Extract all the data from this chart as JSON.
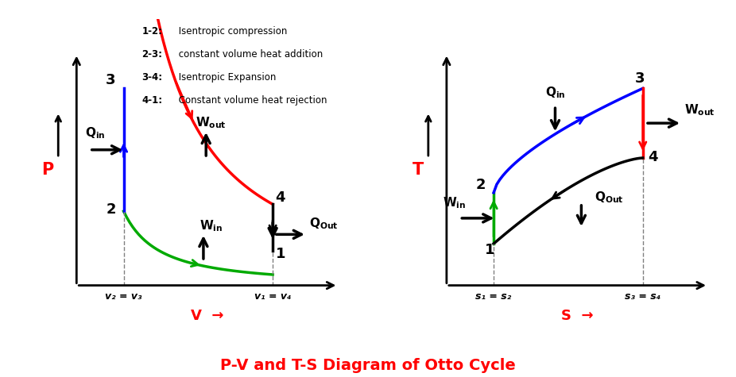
{
  "title": "P-V and T-S Diagram of Otto Cycle",
  "title_color": "red",
  "title_fontsize": 14,
  "legend_lines": [
    "1-2: Isentropic compression",
    "2-3: constant volume heat addition",
    "3-4: Isentropic Expansion",
    "4-1: Constant volume heat rejection"
  ],
  "legend_bold_parts": [
    "1-2:",
    "2-3:",
    "3-4:",
    "4-1:"
  ],
  "pv_ylabel": "P",
  "pv_xlabel": "V",
  "ts_ylabel": "T",
  "ts_xlabel": "S",
  "pv_xlabel_color": "red",
  "pv_ylabel_color": "red",
  "ts_xlabel_color": "red",
  "ts_ylabel_color": "red",
  "pv_xtick1": "v₂ = v₃",
  "pv_xtick2": "v₁ = v₄",
  "ts_xtick1": "s₁ = s₂",
  "ts_xtick2": "s₃ = s₄",
  "background_color": "white",
  "colors": {
    "blue": "#0000FF",
    "red": "#FF0000",
    "green": "#00AA00",
    "black": "#000000"
  }
}
